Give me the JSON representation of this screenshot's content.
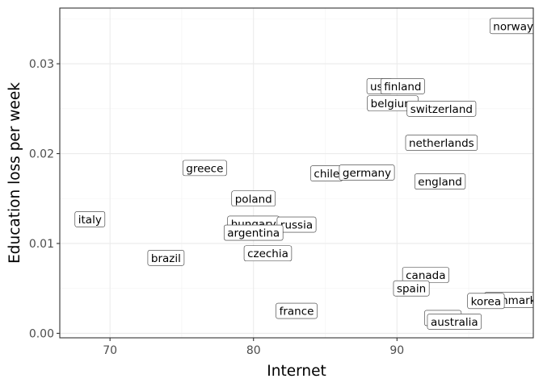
{
  "chart_data": {
    "type": "scatter",
    "geom": "label",
    "xlabel": "Internet",
    "ylabel": "Education loss per week",
    "xlim": [
      66.5,
      99.5
    ],
    "ylim": [
      -0.0005,
      0.0362
    ],
    "x_ticks": [
      70,
      80,
      90
    ],
    "y_ticks": [
      0.0,
      0.01,
      0.02,
      0.03
    ],
    "y_tick_labels": [
      "0.00",
      "0.01",
      "0.02",
      "0.03"
    ],
    "grid": true,
    "theme": "bw",
    "points": [
      {
        "label": "norway",
        "x": 98.1,
        "y": 0.0342
      },
      {
        "label": "usa",
        "x": 88.8,
        "y": 0.0275
      },
      {
        "label": "finland",
        "x": 90.4,
        "y": 0.0275
      },
      {
        "label": "belgium",
        "x": 89.7,
        "y": 0.0256
      },
      {
        "label": "switzerland",
        "x": 93.1,
        "y": 0.025
      },
      {
        "label": "netherlands",
        "x": 93.1,
        "y": 0.0212
      },
      {
        "label": "greece",
        "x": 76.6,
        "y": 0.0184
      },
      {
        "label": "chile",
        "x": 85.1,
        "y": 0.0178
      },
      {
        "label": "germany",
        "x": 87.9,
        "y": 0.0179
      },
      {
        "label": "england",
        "x": 93.0,
        "y": 0.0169
      },
      {
        "label": "poland",
        "x": 80.0,
        "y": 0.015
      },
      {
        "label": "italy",
        "x": 68.6,
        "y": 0.0127
      },
      {
        "label": "hungary",
        "x": 80.0,
        "y": 0.0122
      },
      {
        "label": "russia",
        "x": 83.0,
        "y": 0.0121
      },
      {
        "label": "argentina",
        "x": 80.0,
        "y": 0.0112
      },
      {
        "label": "czechia",
        "x": 81.0,
        "y": 0.0089
      },
      {
        "label": "brazil",
        "x": 73.9,
        "y": 0.0084
      },
      {
        "label": "canada",
        "x": 92.0,
        "y": 0.0065
      },
      {
        "label": "spain",
        "x": 91.0,
        "y": 0.005
      },
      {
        "label": "denmark",
        "x": 98.0,
        "y": 0.0037
      },
      {
        "label": "korea",
        "x": 96.2,
        "y": 0.0036
      },
      {
        "label": "france",
        "x": 83.0,
        "y": 0.0025
      },
      {
        "label": "japan",
        "x": 93.2,
        "y": 0.0017
      },
      {
        "label": "australia",
        "x": 94.0,
        "y": 0.0013
      }
    ]
  }
}
